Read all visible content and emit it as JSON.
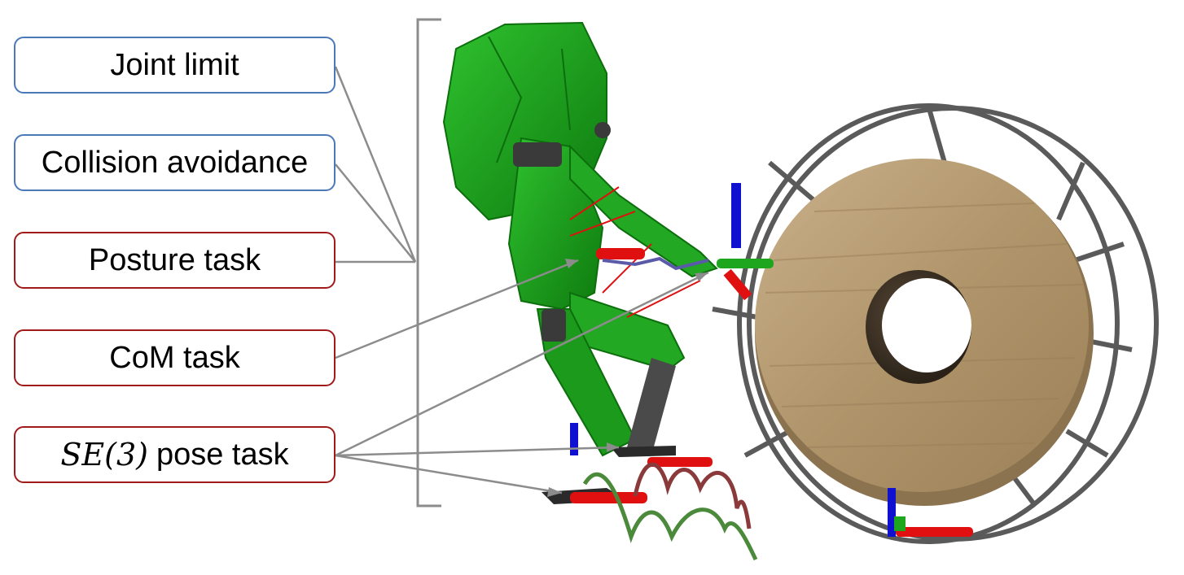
{
  "labels": [
    {
      "id": "joint-limit",
      "text": "Joint limit",
      "border_color": "#4a78b8"
    },
    {
      "id": "collision-avoidance",
      "text": "Collision avoidance",
      "border_color": "#4a78b8"
    },
    {
      "id": "posture-task",
      "text": "Posture task",
      "border_color": "#a01a1a"
    },
    {
      "id": "com-task",
      "text": "CoM task",
      "border_color": "#a01a1a"
    },
    {
      "id": "se3-pose-task",
      "math": "SE(3)",
      "text": "pose task",
      "border_color": "#a01a1a"
    }
  ],
  "colors": {
    "robot": "#1fa61f",
    "robot_dark": "#0d6e0d",
    "joints": "#3a3a3a",
    "wood": "#b39a72",
    "wheel_frame": "#5a5a5a",
    "axis_x": "#e01010",
    "axis_y": "#1fa61f",
    "axis_z": "#1010d0",
    "connector": "#8c8c8c",
    "trajectory_red": "#8a3a3a",
    "trajectory_green": "#4a8a3a"
  }
}
